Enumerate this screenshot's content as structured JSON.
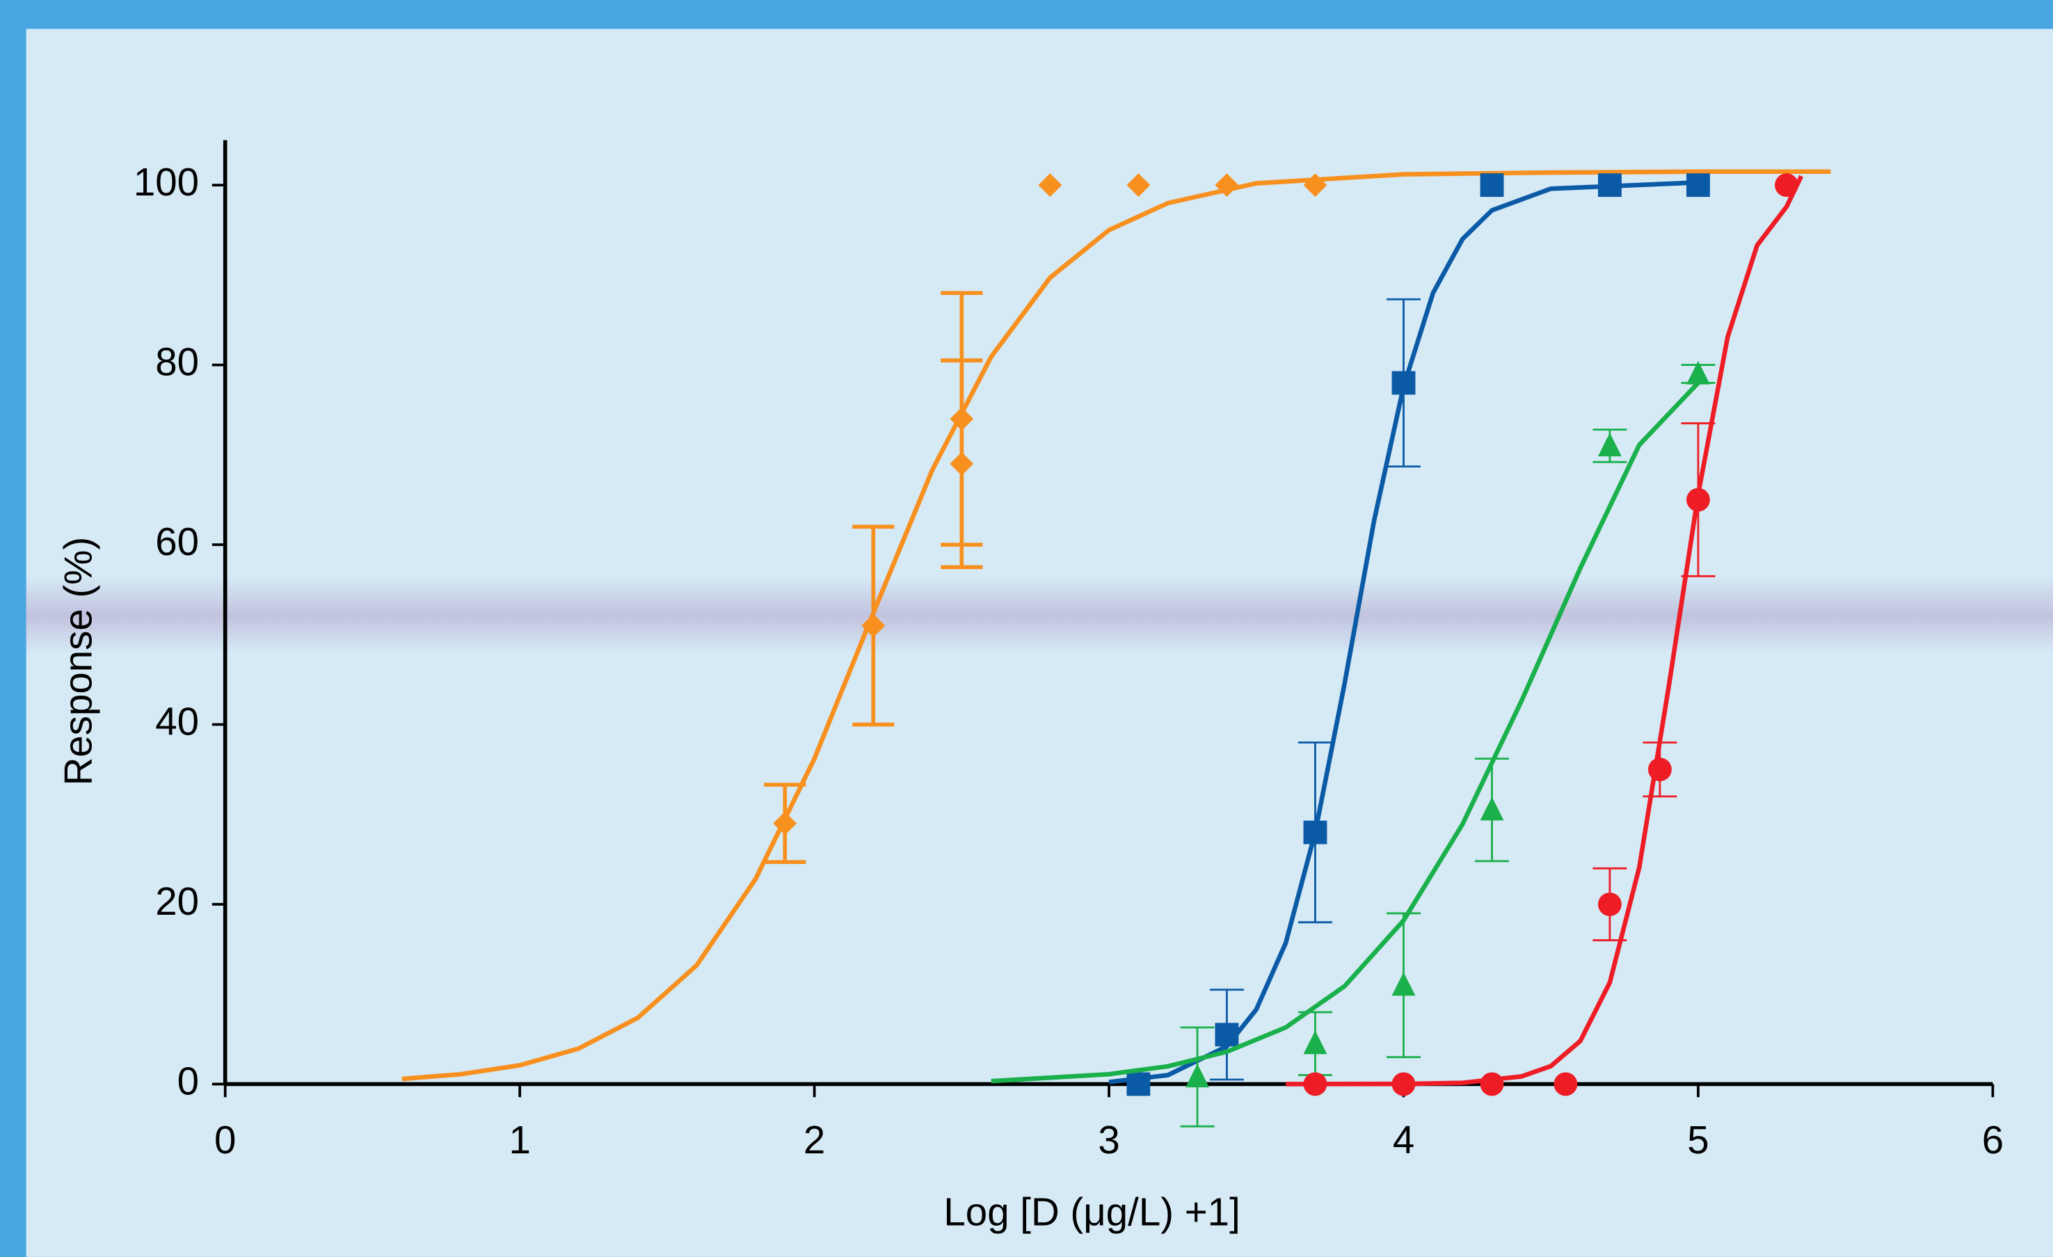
{
  "chart_data": {
    "type": "scatter",
    "x_label": "Log [D (μg/L) +1]",
    "y_label": "Response (%)",
    "xlim": [
      0,
      6
    ],
    "xticks": [
      0,
      1,
      2,
      3,
      4,
      5,
      6
    ],
    "ylim": [
      0,
      105
    ],
    "yticks": [
      0,
      20,
      40,
      60,
      80,
      100
    ],
    "series": [
      {
        "color": "#f7901e",
        "marker": "diamond",
        "x": [
          1.9,
          2.2,
          2.5,
          2.5,
          2.8,
          3.1,
          3.4,
          3.7
        ],
        "values": [
          29,
          51,
          74,
          69,
          100,
          100,
          100,
          100
        ],
        "errors": [
          4.3,
          11,
          14,
          11.5,
          null,
          null,
          null,
          null
        ],
        "fit": {
          "x": [
            0.6,
            0.8,
            1.0,
            1.2,
            1.4,
            1.6,
            1.8,
            2.0,
            2.2,
            2.4,
            2.6,
            2.8,
            3.0,
            3.2,
            3.5,
            4.0,
            4.5,
            5.0,
            5.45
          ],
          "values": [
            0.57,
            1.1,
            2.09,
            3.96,
            7.36,
            13.2,
            22.8,
            36.2,
            52.4,
            68.3,
            80.9,
            89.7,
            95.0,
            98.0,
            100.2,
            101.2,
            101.4,
            101.5,
            101.5
          ]
        }
      },
      {
        "color": "#0b5aa6",
        "marker": "square",
        "x": [
          3.1,
          3.4,
          3.7,
          4.0,
          4.3,
          4.7,
          5.0
        ],
        "values": [
          0,
          5.5,
          28,
          78,
          100,
          100,
          100
        ],
        "errors": [
          null,
          5,
          10,
          9.3,
          null,
          null,
          null
        ],
        "fit": {
          "x": [
            3.0,
            3.2,
            3.4,
            3.5,
            3.6,
            3.7,
            3.8,
            3.9,
            4.0,
            4.1,
            4.2,
            4.3,
            4.5,
            5.0
          ],
          "values": [
            0.23,
            1.0,
            4.2,
            8.3,
            15.7,
            28,
            44.6,
            62.7,
            77.6,
            88,
            94,
            97.2,
            99.6,
            100.3
          ]
        }
      },
      {
        "color": "#1ab04b",
        "marker": "triangle",
        "x": [
          3.3,
          3.7,
          4.0,
          4.3,
          4.7,
          5.0
        ],
        "values": [
          0.8,
          4.5,
          11,
          30.5,
          71,
          79
        ],
        "errors": [
          5.5,
          3.5,
          8,
          5.7,
          1.8,
          1
        ],
        "fit": {
          "x": [
            2.6,
            3.0,
            3.2,
            3.4,
            3.6,
            3.8,
            4.0,
            4.2,
            4.4,
            4.6,
            4.8,
            5.0
          ],
          "values": [
            0.33,
            1.1,
            1.98,
            3.6,
            6.3,
            10.9,
            18.2,
            28.9,
            42.6,
            57.4,
            71.1,
            78
          ]
        }
      },
      {
        "color": "#ee1c25",
        "marker": "circle",
        "x": [
          3.7,
          4.0,
          4.3,
          4.55,
          4.7,
          4.87,
          5.0,
          5.3
        ],
        "values": [
          0,
          0,
          0,
          0,
          20,
          35,
          65,
          100
        ],
        "errors": [
          null,
          null,
          null,
          null,
          4,
          3,
          8.5,
          null
        ],
        "fit": {
          "x": [
            3.6,
            4.0,
            4.2,
            4.4,
            4.5,
            4.6,
            4.7,
            4.8,
            4.9,
            5.0,
            5.1,
            5.2,
            5.3,
            5.35
          ],
          "values": [
            0,
            0.02,
            0.14,
            0.85,
            2.0,
            4.8,
            11.3,
            24.1,
            44.2,
            65.6,
            83.1,
            93.3,
            97.6,
            101
          ]
        }
      }
    ]
  }
}
